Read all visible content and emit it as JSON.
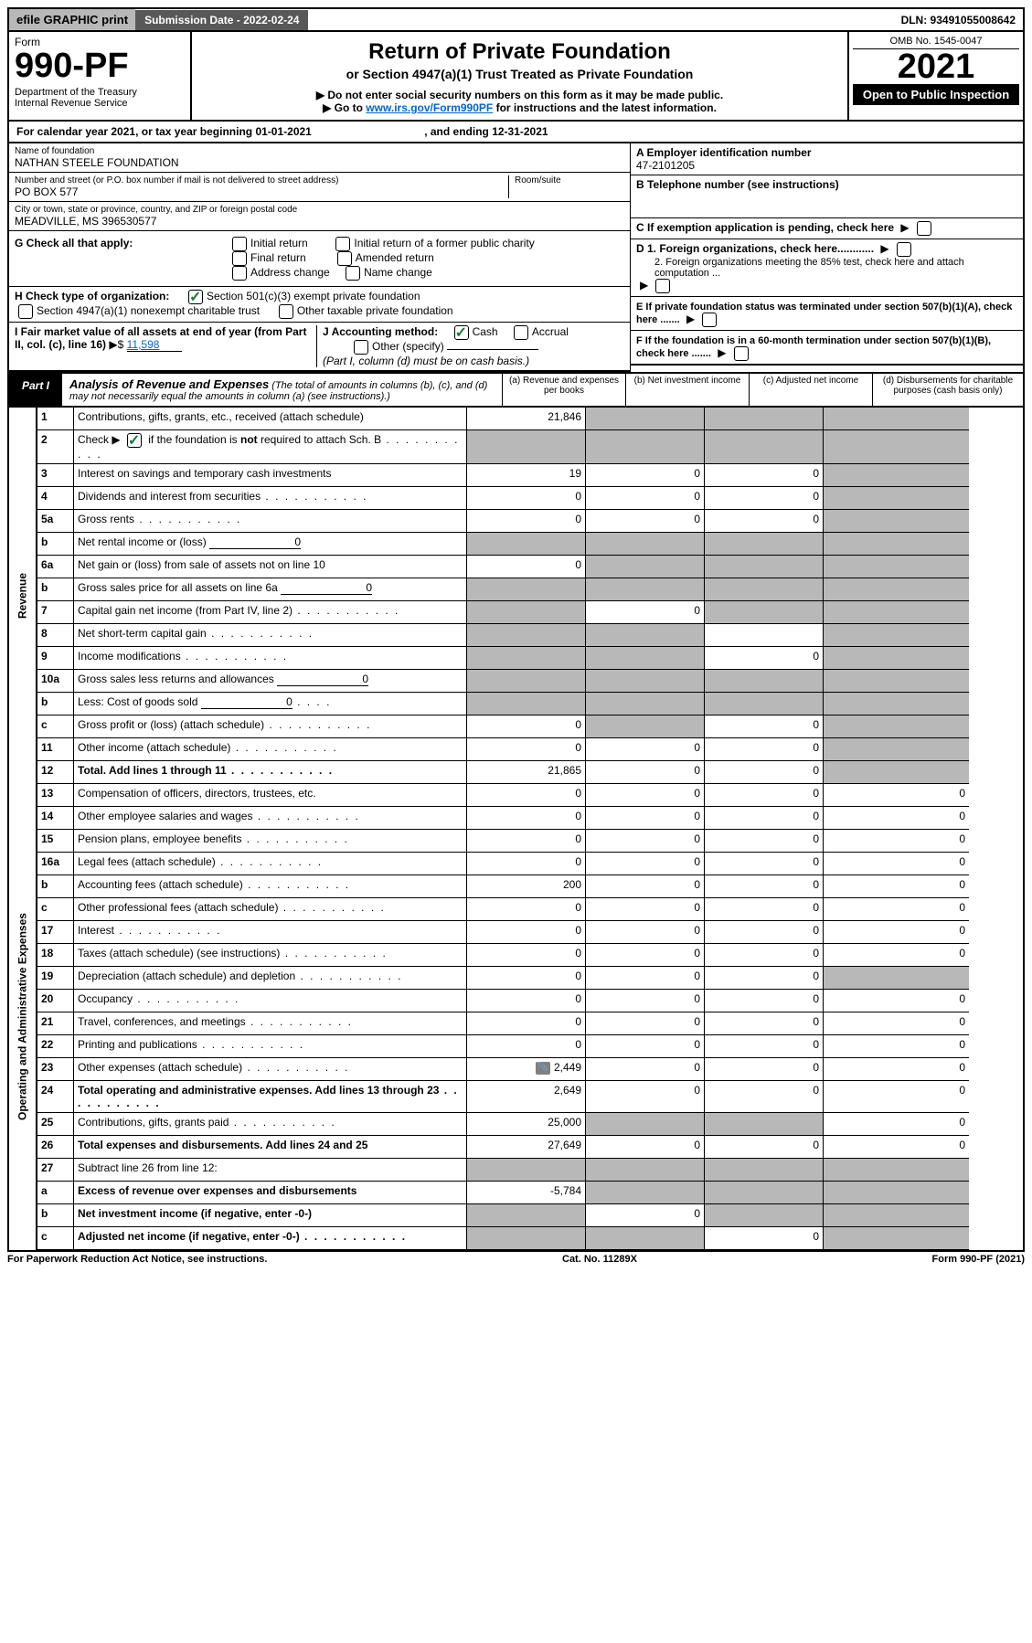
{
  "topbar": {
    "efile": "efile GRAPHIC print",
    "submission_label": "Submission Date - 2022-02-24",
    "dln": "DLN: 93491055008642"
  },
  "header": {
    "form_label": "Form",
    "form_no": "990-PF",
    "dept": "Department of the Treasury",
    "irs": "Internal Revenue Service",
    "title": "Return of Private Foundation",
    "subtitle": "or Section 4947(a)(1) Trust Treated as Private Foundation",
    "note1": "▶ Do not enter social security numbers on this form as it may be made public.",
    "note2_pre": "▶ Go to ",
    "note2_link": "www.irs.gov/Form990PF",
    "note2_post": " for instructions and the latest information.",
    "omb": "OMB No. 1545-0047",
    "year": "2021",
    "open": "Open to Public Inspection"
  },
  "calendar": {
    "text_pre": "For calendar year 2021, or tax year beginning ",
    "begin": "01-01-2021",
    "mid": " , and ending ",
    "end": "12-31-2021"
  },
  "entity": {
    "name_label": "Name of foundation",
    "name": "NATHAN STEELE FOUNDATION",
    "addr_label": "Number and street (or P.O. box number if mail is not delivered to street address)",
    "addr": "PO BOX 577",
    "room_label": "Room/suite",
    "city_label": "City or town, state or province, country, and ZIP or foreign postal code",
    "city": "MEADVILLE, MS  396530577",
    "ein_label": "A Employer identification number",
    "ein": "47-2101205",
    "tel_label": "B Telephone number (see instructions)",
    "c_label": "C If exemption application is pending, check here",
    "d1": "D 1. Foreign organizations, check here............",
    "d2": "2. Foreign organizations meeting the 85% test, check here and attach computation ...",
    "e_label": "E  If private foundation status was terminated under section 507(b)(1)(A), check here .......",
    "f_label": "F  If the foundation is in a 60-month termination under section 507(b)(1)(B), check here .......",
    "g_label": "G Check all that apply:",
    "g_opts": [
      "Initial return",
      "Final return",
      "Address change",
      "Initial return of a former public charity",
      "Amended return",
      "Name change"
    ],
    "h_label": "H Check type of organization:",
    "h1": "Section 501(c)(3) exempt private foundation",
    "h2": "Section 4947(a)(1) nonexempt charitable trust",
    "h3": "Other taxable private foundation",
    "i_label": "I Fair market value of all assets at end of year (from Part II, col. (c), line 16)",
    "i_val": "11,598",
    "j_label": "J Accounting method:",
    "j_cash": "Cash",
    "j_acc": "Accrual",
    "j_other": "Other (specify)",
    "j_note": "(Part I, column (d) must be on cash basis.)"
  },
  "part1": {
    "label": "Part I",
    "title": "Analysis of Revenue and Expenses",
    "title_note": "(The total of amounts in columns (b), (c), and (d) may not necessarily equal the amounts in column (a) (see instructions).)",
    "cols": {
      "a": "(a) Revenue and expenses per books",
      "b": "(b) Net investment income",
      "c": "(c) Adjusted net income",
      "d": "(d) Disbursements for charitable purposes (cash basis only)"
    }
  },
  "side": {
    "revenue": "Revenue",
    "expenses": "Operating and Administrative Expenses"
  },
  "rows": [
    {
      "n": "1",
      "d": "Contributions, gifts, grants, etc., received (attach schedule)",
      "a": "21,846",
      "b_sh": 1,
      "c_sh": 1,
      "dd_sh": 1
    },
    {
      "n": "2",
      "d": "Check ▶ ☑ if the foundation is not required to attach Sch. B",
      "dots": 1,
      "a_sh": 1,
      "b_sh": 1,
      "c_sh": 1,
      "dd_sh": 1,
      "check": 1
    },
    {
      "n": "3",
      "d": "Interest on savings and temporary cash investments",
      "a": "19",
      "b": "0",
      "c": "0",
      "dd_sh": 1
    },
    {
      "n": "4",
      "d": "Dividends and interest from securities",
      "dots": 1,
      "a": "0",
      "b": "0",
      "c": "0",
      "dd_sh": 1
    },
    {
      "n": "5a",
      "d": "Gross rents",
      "dots": 1,
      "a": "0",
      "b": "0",
      "c": "0",
      "dd_sh": 1
    },
    {
      "n": "b",
      "d": "Net rental income or (loss)",
      "inline": "0",
      "a_sh": 1,
      "b_sh": 1,
      "c_sh": 1,
      "dd_sh": 1
    },
    {
      "n": "6a",
      "d": "Net gain or (loss) from sale of assets not on line 10",
      "a": "0",
      "b_sh": 1,
      "c_sh": 1,
      "dd_sh": 1
    },
    {
      "n": "b",
      "d": "Gross sales price for all assets on line 6a",
      "inline": "0",
      "a_sh": 1,
      "b_sh": 1,
      "c_sh": 1,
      "dd_sh": 1
    },
    {
      "n": "7",
      "d": "Capital gain net income (from Part IV, line 2)",
      "dots": 1,
      "a_sh": 1,
      "b": "0",
      "c_sh": 1,
      "dd_sh": 1
    },
    {
      "n": "8",
      "d": "Net short-term capital gain",
      "dots": 1,
      "a_sh": 1,
      "b_sh": 1,
      "c": "",
      "dd_sh": 1
    },
    {
      "n": "9",
      "d": "Income modifications",
      "dots": 1,
      "a_sh": 1,
      "b_sh": 1,
      "c": "0",
      "dd_sh": 1
    },
    {
      "n": "10a",
      "d": "Gross sales less returns and allowances",
      "inline": "0",
      "a_sh": 1,
      "b_sh": 1,
      "c_sh": 1,
      "dd_sh": 1
    },
    {
      "n": "b",
      "d": "Less: Cost of goods sold",
      "dots_sm": 1,
      "inline": "0",
      "a_sh": 1,
      "b_sh": 1,
      "c_sh": 1,
      "dd_sh": 1
    },
    {
      "n": "c",
      "d": "Gross profit or (loss) (attach schedule)",
      "dots": 1,
      "a": "0",
      "b_sh": 1,
      "c": "0",
      "dd_sh": 1
    },
    {
      "n": "11",
      "d": "Other income (attach schedule)",
      "dots": 1,
      "a": "0",
      "b": "0",
      "c": "0",
      "dd_sh": 1
    },
    {
      "n": "12",
      "d": "Total. Add lines 1 through 11",
      "dots": 1,
      "bold": 1,
      "a": "21,865",
      "b": "0",
      "c": "0",
      "dd_sh": 1
    },
    {
      "n": "13",
      "d": "Compensation of officers, directors, trustees, etc.",
      "a": "0",
      "b": "0",
      "c": "0",
      "dd": "0"
    },
    {
      "n": "14",
      "d": "Other employee salaries and wages",
      "dots": 1,
      "a": "0",
      "b": "0",
      "c": "0",
      "dd": "0"
    },
    {
      "n": "15",
      "d": "Pension plans, employee benefits",
      "dots": 1,
      "a": "0",
      "b": "0",
      "c": "0",
      "dd": "0"
    },
    {
      "n": "16a",
      "d": "Legal fees (attach schedule)",
      "dots": 1,
      "a": "0",
      "b": "0",
      "c": "0",
      "dd": "0"
    },
    {
      "n": "b",
      "d": "Accounting fees (attach schedule)",
      "dots": 1,
      "a": "200",
      "b": "0",
      "c": "0",
      "dd": "0"
    },
    {
      "n": "c",
      "d": "Other professional fees (attach schedule)",
      "dots": 1,
      "a": "0",
      "b": "0",
      "c": "0",
      "dd": "0"
    },
    {
      "n": "17",
      "d": "Interest",
      "dots": 1,
      "a": "0",
      "b": "0",
      "c": "0",
      "dd": "0"
    },
    {
      "n": "18",
      "d": "Taxes (attach schedule) (see instructions)",
      "dots": 1,
      "a": "0",
      "b": "0",
      "c": "0",
      "dd": "0"
    },
    {
      "n": "19",
      "d": "Depreciation (attach schedule) and depletion",
      "dots": 1,
      "a": "0",
      "b": "0",
      "c": "0",
      "dd_sh": 1
    },
    {
      "n": "20",
      "d": "Occupancy",
      "dots": 1,
      "a": "0",
      "b": "0",
      "c": "0",
      "dd": "0"
    },
    {
      "n": "21",
      "d": "Travel, conferences, and meetings",
      "dots": 1,
      "a": "0",
      "b": "0",
      "c": "0",
      "dd": "0"
    },
    {
      "n": "22",
      "d": "Printing and publications",
      "dots": 1,
      "a": "0",
      "b": "0",
      "c": "0",
      "dd": "0"
    },
    {
      "n": "23",
      "d": "Other expenses (attach schedule)",
      "dots": 1,
      "icon": 1,
      "a": "2,449",
      "b": "0",
      "c": "0",
      "dd": "0"
    },
    {
      "n": "24",
      "d": "Total operating and administrative expenses. Add lines 13 through 23",
      "dots": 1,
      "bold": 1,
      "a": "2,649",
      "b": "0",
      "c": "0",
      "dd": "0"
    },
    {
      "n": "25",
      "d": "Contributions, gifts, grants paid",
      "dots": 1,
      "a": "25,000",
      "b_sh": 1,
      "c_sh": 1,
      "dd": "0"
    },
    {
      "n": "26",
      "d": "Total expenses and disbursements. Add lines 24 and 25",
      "bold": 1,
      "a": "27,649",
      "b": "0",
      "c": "0",
      "dd": "0"
    },
    {
      "n": "27",
      "d": "Subtract line 26 from line 12:",
      "a_sh": 1,
      "b_sh": 1,
      "c_sh": 1,
      "dd_sh": 1
    },
    {
      "n": "a",
      "d": "Excess of revenue over expenses and disbursements",
      "bold": 1,
      "a": "-5,784",
      "b_sh": 1,
      "c_sh": 1,
      "dd_sh": 1
    },
    {
      "n": "b",
      "d": "Net investment income (if negative, enter -0-)",
      "bold": 1,
      "a_sh": 1,
      "b": "0",
      "c_sh": 1,
      "dd_sh": 1
    },
    {
      "n": "c",
      "d": "Adjusted net income (if negative, enter -0-)",
      "dots": 1,
      "bold": 1,
      "a_sh": 1,
      "b_sh": 1,
      "c": "0",
      "dd_sh": 1
    }
  ],
  "footer": {
    "left": "For Paperwork Reduction Act Notice, see instructions.",
    "center": "Cat. No. 11289X",
    "right": "Form 990-PF (2021)"
  }
}
